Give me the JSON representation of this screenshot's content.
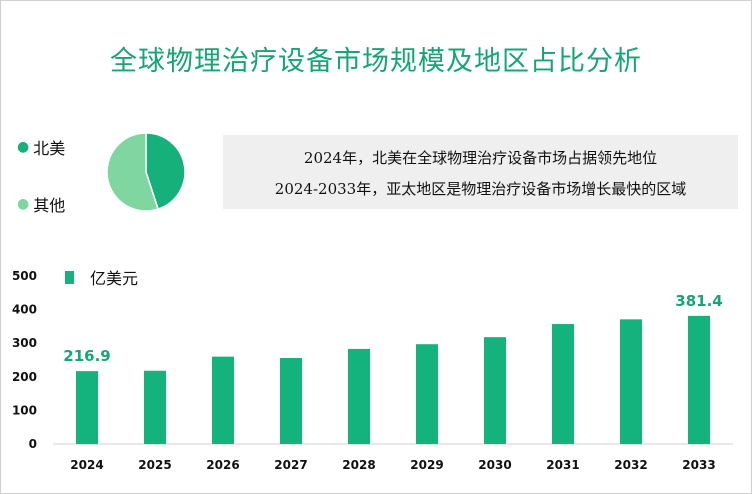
{
  "title": "全球物理治疗设备市场规模及地区占比分析",
  "colors": {
    "accent": "#17a673",
    "bar": "#14b37e",
    "pie_na": "#16b07b",
    "pie_other": "#7fd6a0",
    "note_bg": "#efefef"
  },
  "pie": {
    "legend": [
      {
        "label": "北美",
        "color": "#16b07b"
      },
      {
        "label": "其他",
        "color": "#7fd6a0"
      }
    ]
  },
  "notes": {
    "line1": "2024年，北美在全球物理治疗设备市场占据领先地位",
    "line2": "2024-2033年，亚太地区是物理治疗设备市场增长最快的区域"
  },
  "chart_data": [
    {
      "type": "pie",
      "labels": [
        "北美",
        "其他"
      ],
      "values": [
        45,
        55
      ],
      "colors": [
        "#16b07b",
        "#7fd6a0"
      ]
    },
    {
      "type": "bar",
      "legend": "亿美元",
      "categories": [
        "2024",
        "2025",
        "2026",
        "2027",
        "2028",
        "2029",
        "2030",
        "2031",
        "2032",
        "2033"
      ],
      "values": [
        216.9,
        218,
        260,
        256,
        283,
        297,
        318,
        357,
        371,
        381.4
      ],
      "data_labels": {
        "2024": "216.9",
        "2033": "381.4"
      },
      "ylim": [
        0,
        500
      ],
      "yticks": [
        "0",
        "100",
        "200",
        "300",
        "400",
        "500"
      ],
      "grid": false,
      "color": "#14b37e"
    }
  ]
}
